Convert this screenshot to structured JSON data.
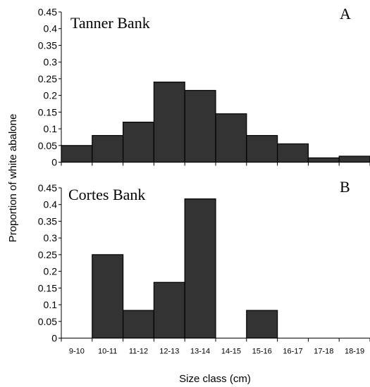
{
  "chart_data": [
    {
      "type": "bar",
      "panel_letter": "A",
      "title": "Tanner Bank",
      "categories": [
        "9-10",
        "10-11",
        "11-12",
        "12-13",
        "13-14",
        "14-15",
        "15-16",
        "16-17",
        "17-18",
        "18-19"
      ],
      "values": [
        0.05,
        0.08,
        0.12,
        0.24,
        0.215,
        0.145,
        0.08,
        0.055,
        0.013,
        0.018
      ],
      "ylim": [
        0,
        0.45
      ],
      "yticks": [
        "0",
        "0.05",
        "0.1",
        "0.15",
        "0.2",
        "0.25",
        "0.3",
        "0.35",
        "0.4",
        "0.45"
      ],
      "bar_color": "#333333"
    },
    {
      "type": "bar",
      "panel_letter": "B",
      "title": "Cortes Bank",
      "categories": [
        "9-10",
        "10-11",
        "11-12",
        "12-13",
        "13-14",
        "14-15",
        "15-16",
        "16-17",
        "17-18",
        "18-19"
      ],
      "values": [
        0,
        0.25,
        0.083,
        0.167,
        0.417,
        0,
        0.083,
        0,
        0,
        0
      ],
      "ylim": [
        0,
        0.45
      ],
      "yticks": [
        "0",
        "0.05",
        "0.1",
        "0.15",
        "0.2",
        "0.25",
        "0.3",
        "0.35",
        "0.4",
        "0.45"
      ],
      "bar_color": "#333333"
    }
  ],
  "axes": {
    "ylabel": "Proportion of white abalone",
    "xlabel": "Size class (cm)"
  }
}
